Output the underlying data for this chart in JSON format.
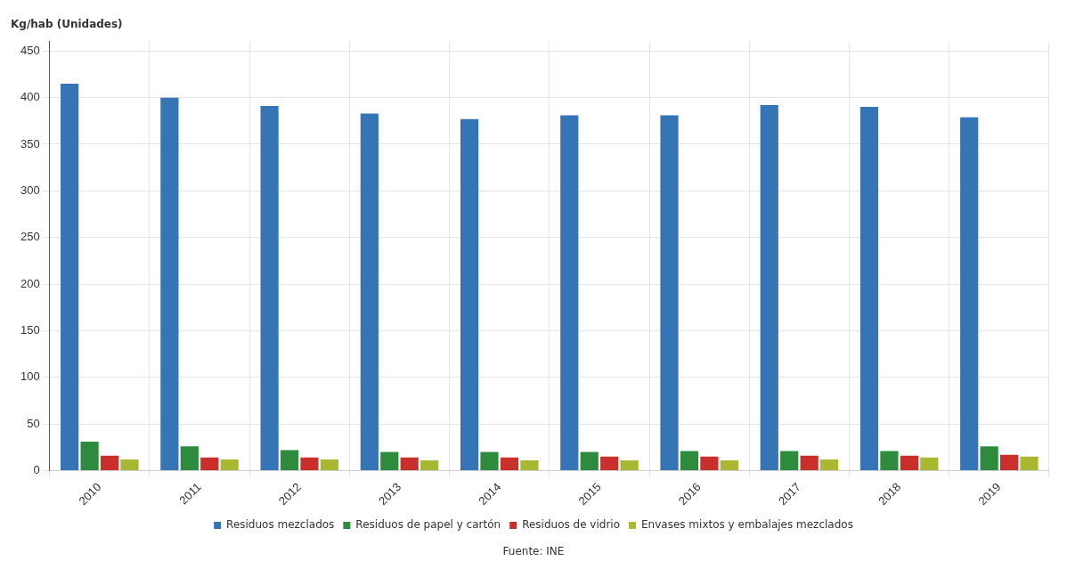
{
  "chart_data": {
    "type": "bar",
    "ylabel": "Kg/hab (Unidades)",
    "categories": [
      "2010",
      "2011",
      "2012",
      "2013",
      "2014",
      "2015",
      "2016",
      "2017",
      "2018",
      "2019"
    ],
    "series": [
      {
        "name": "Residuos mezclados",
        "color": "#3575b5",
        "values": [
          415,
          400,
          391,
          383,
          377,
          381,
          381,
          392,
          390,
          379
        ]
      },
      {
        "name": "Residuos de papel y cartón",
        "color": "#2e8b3e",
        "values": [
          31,
          26,
          22,
          20,
          20,
          20,
          21,
          21,
          21,
          26
        ]
      },
      {
        "name": "Residuos de vidrio",
        "color": "#c9302c",
        "values": [
          16,
          14,
          14,
          14,
          14,
          15,
          15,
          16,
          16,
          17
        ]
      },
      {
        "name": "Envases mixtos y embalajes mezclados",
        "color": "#a8b832",
        "values": [
          12,
          12,
          12,
          11,
          11,
          11,
          11,
          12,
          14,
          15
        ]
      }
    ],
    "ylim": [
      0,
      460
    ],
    "yticks": [
      0,
      50,
      100,
      150,
      200,
      250,
      300,
      350,
      400,
      450
    ],
    "grid": true,
    "legend": "bottom",
    "annotations": [
      "Fuente: INE"
    ]
  }
}
